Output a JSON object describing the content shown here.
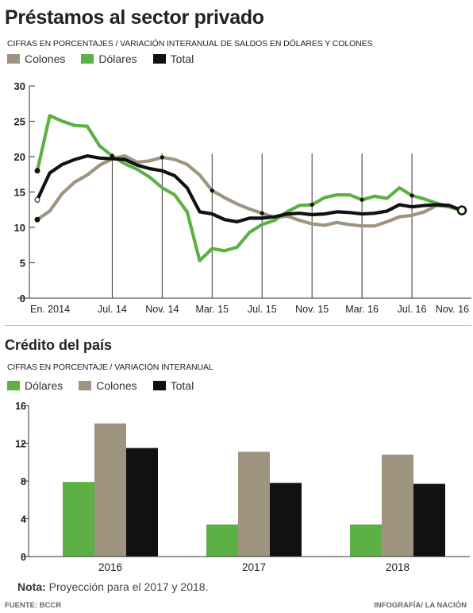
{
  "colors": {
    "colones": "#9e9480",
    "dolares": "#5db043",
    "total": "#111111",
    "axis": "#333333"
  },
  "chart1": {
    "title": "Préstamos al sector privado",
    "subtitle": "CIFRAS EN PORCENTAJES / VARIACIÓN INTERANUAL DE SALDOS EN DÓLARES Y COLONES",
    "legend": [
      "Colones",
      "Dólares",
      "Total"
    ]
  },
  "chart2": {
    "title": "Crédito del país",
    "subtitle": "CIFRAS EN PORCENTAJE / VARIACIÓN INTERANUAL",
    "legend": [
      "Dólares",
      "Colones",
      "Total"
    ]
  },
  "note": {
    "label": "Nota:",
    "text": " Proyección para el 2017 y 2018."
  },
  "footer": {
    "source": "FUENTE: BCCR",
    "credit": "INFOGRAFÍA/ LA NACIÓN"
  },
  "chart_data": [
    {
      "type": "line",
      "title": "Préstamos al sector privado",
      "subtitle": "CIFRAS EN PORCENTAJES / VARIACIÓN INTERANUAL DE SALDOS EN DÓLARES Y COLONES",
      "ylim": [
        0,
        30
      ],
      "yticks": [
        0,
        5,
        10,
        15,
        20,
        25,
        30
      ],
      "xticks": [
        "En. 2014",
        "Jul. 14",
        "Nov. 14",
        "Mar. 15",
        "Jul. 15",
        "Nov. 15",
        "Mar. 16",
        "Jul. 16",
        "Nov. 16"
      ],
      "xtick_index": [
        0,
        6,
        10,
        14,
        18,
        22,
        26,
        30,
        34
      ],
      "markers": [
        0,
        6,
        10,
        14,
        18,
        22,
        26,
        30,
        34
      ],
      "x": [
        "En. 2014",
        "Feb. 14",
        "Mar. 14",
        "Abr. 14",
        "May. 14",
        "Jun. 14",
        "Jul. 14",
        "Ago. 14",
        "Sep. 14",
        "Oct. 14",
        "Nov. 14",
        "Dic. 14",
        "En. 15",
        "Feb. 15",
        "Mar. 15",
        "Abr. 15",
        "May. 15",
        "Jun. 15",
        "Jul. 15",
        "Ago. 15",
        "Sep. 15",
        "Oct. 15",
        "Nov. 15",
        "Dic. 15",
        "En. 16",
        "Feb. 16",
        "Mar. 16",
        "Abr. 16",
        "May. 16",
        "Jun. 16",
        "Jul. 16",
        "Ago. 16",
        "Sep. 16",
        "Oct. 16",
        "Nov. 16"
      ],
      "series": [
        {
          "name": "Colones",
          "values": [
            11.1,
            12.3,
            14.8,
            16.4,
            17.4,
            18.8,
            19.7,
            20.1,
            19.2,
            19.4,
            19.9,
            19.6,
            18.9,
            17.4,
            15.2,
            14.2,
            13.3,
            12.6,
            12.0,
            11.4,
            11.6,
            11.0,
            10.5,
            10.3,
            10.7,
            10.4,
            10.2,
            10.2,
            10.8,
            11.5,
            11.7,
            12.2,
            13.1,
            12.9,
            12.4
          ]
        },
        {
          "name": "Dólares",
          "values": [
            18.0,
            25.8,
            25.0,
            24.4,
            24.3,
            21.5,
            20.1,
            19.0,
            18.2,
            17.1,
            15.6,
            14.6,
            12.2,
            5.3,
            7.0,
            6.7,
            7.2,
            9.3,
            10.4,
            11.0,
            12.2,
            13.1,
            13.2,
            14.2,
            14.6,
            14.6,
            13.9,
            14.4,
            14.1,
            15.6,
            14.5,
            14.0,
            13.4,
            12.9,
            12.4
          ]
        },
        {
          "name": "Total",
          "values": [
            13.9,
            17.7,
            18.9,
            19.6,
            20.1,
            19.8,
            19.7,
            19.6,
            18.8,
            18.3,
            18.0,
            17.3,
            15.6,
            12.2,
            11.9,
            11.1,
            10.8,
            11.3,
            11.3,
            11.5,
            11.9,
            12.0,
            11.8,
            11.9,
            12.2,
            12.1,
            11.9,
            12.0,
            12.3,
            13.2,
            12.9,
            13.1,
            13.2,
            13.1,
            12.4
          ]
        }
      ]
    },
    {
      "type": "bar",
      "title": "Crédito del país",
      "subtitle": "CIFRAS EN PORCENTAJE / VARIACIÓN INTERANUAL",
      "categories": [
        "2016",
        "2017",
        "2018"
      ],
      "ylim": [
        0,
        16
      ],
      "yticks": [
        0,
        4,
        8,
        12,
        16
      ],
      "series": [
        {
          "name": "Dólares",
          "values": [
            7.9,
            3.4,
            3.4
          ]
        },
        {
          "name": "Colones",
          "values": [
            14.1,
            11.1,
            10.8
          ]
        },
        {
          "name": "Total",
          "values": [
            11.5,
            7.8,
            7.7
          ]
        }
      ]
    }
  ]
}
